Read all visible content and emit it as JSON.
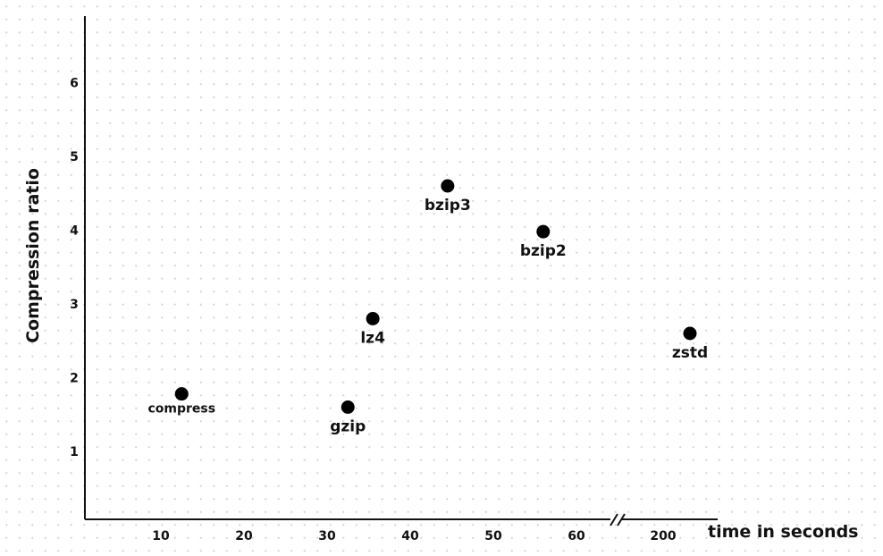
{
  "chart_data": {
    "type": "scatter",
    "title": "",
    "xlabel": "time in seconds",
    "ylabel": "Compression ratio",
    "x_axis_break": true,
    "x_ticks": [
      "10",
      "20",
      "30",
      "40",
      "50",
      "60",
      "200"
    ],
    "y_ticks": [
      "1",
      "2",
      "3",
      "4",
      "5",
      "6"
    ],
    "ylim": [
      0,
      7
    ],
    "grid": false,
    "points": [
      {
        "label": "compress",
        "x": 12.5,
        "y": 1.78
      },
      {
        "label": "gzip",
        "x": 32.5,
        "y": 1.6
      },
      {
        "label": "lz4",
        "x": 35.5,
        "y": 2.8
      },
      {
        "label": "bzip3",
        "x": 44.5,
        "y": 4.6
      },
      {
        "label": "bzip2",
        "x": 56.0,
        "y": 3.98
      },
      {
        "label": "zstd",
        "x": 205,
        "y": 2.6
      }
    ]
  }
}
